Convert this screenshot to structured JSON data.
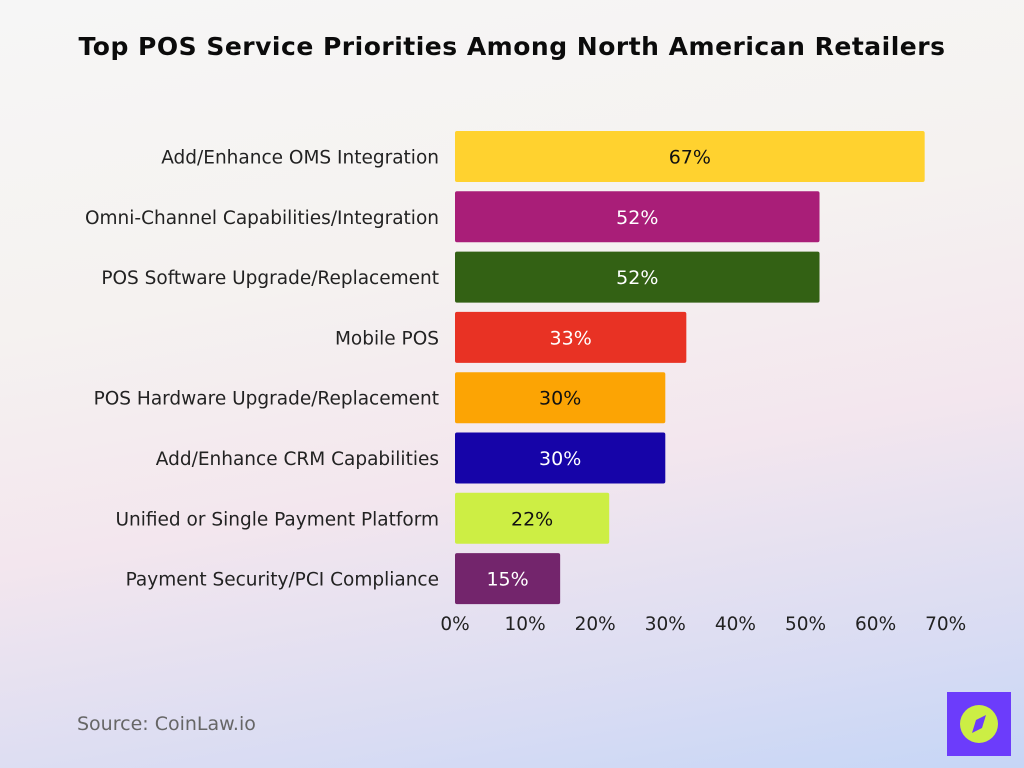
{
  "chart_data": {
    "type": "bar",
    "orientation": "horizontal",
    "title": "Top POS Service Priorities Among North American Retailers",
    "categories": [
      "Add/Enhance OMS Integration",
      "Omni-Channel Capabilities/Integration",
      "POS Software Upgrade/Replacement",
      "Mobile POS",
      "POS Hardware Upgrade/Replacement",
      "Add/Enhance CRM Capabilities",
      "Unified or Single Payment Platform",
      "Payment Security/PCI Compliance"
    ],
    "values": [
      67,
      52,
      52,
      33,
      30,
      30,
      22,
      15
    ],
    "data_labels": [
      "67%",
      "52%",
      "52%",
      "33%",
      "30%",
      "30%",
      "22%",
      "15%"
    ],
    "colors": [
      "#ffd22f",
      "#a91e78",
      "#336114",
      "#e83224",
      "#fca404",
      "#1604a8",
      "#cdee44",
      "#73256c"
    ],
    "label_colors": [
      "#111111",
      "#ffffff",
      "#ffffff",
      "#ffffff",
      "#111111",
      "#ffffff",
      "#111111",
      "#ffffff"
    ],
    "xlim": [
      0,
      70
    ],
    "xticks": [
      "0%",
      "10%",
      "20%",
      "30%",
      "40%",
      "50%",
      "60%",
      "70%"
    ],
    "grid": false,
    "xlabel": "",
    "ylabel": ""
  },
  "source": "Source: CoinLaw.io",
  "logo": {
    "icon": "compass-icon",
    "colors": [
      "#6c3cfb",
      "#ccee44"
    ]
  }
}
